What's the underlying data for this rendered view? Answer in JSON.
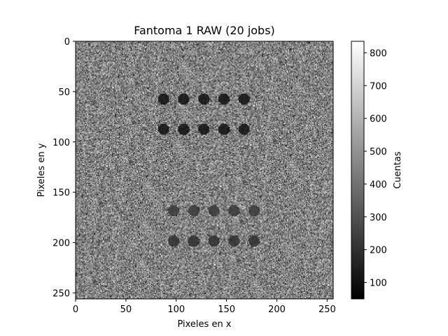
{
  "chart_data": {
    "type": "heatmap",
    "title": "Fantoma 1 RAW (20 jobs)",
    "xlabel": "Pixeles en x",
    "ylabel": "Pixeles en y",
    "xlim": [
      0,
      256
    ],
    "ylim": [
      256,
      0
    ],
    "x_ticks": [
      0,
      50,
      100,
      150,
      200,
      250
    ],
    "y_ticks": [
      0,
      50,
      100,
      150,
      200,
      250
    ],
    "colormap": "gray",
    "colorbar": {
      "label": "Cuentas",
      "range": [
        50,
        835
      ],
      "ticks": [
        100,
        200,
        300,
        400,
        500,
        600,
        700,
        800
      ]
    },
    "background": {
      "mean_counts": 450,
      "noise_std": 110
    },
    "spots": [
      {
        "x": 87,
        "y": 57,
        "radius": 5.5,
        "counts": 150
      },
      {
        "x": 107,
        "y": 57,
        "radius": 5.5,
        "counts": 150
      },
      {
        "x": 127,
        "y": 57,
        "radius": 5.5,
        "counts": 150
      },
      {
        "x": 147,
        "y": 57,
        "radius": 5.5,
        "counts": 150
      },
      {
        "x": 167,
        "y": 57,
        "radius": 5.5,
        "counts": 150
      },
      {
        "x": 87,
        "y": 87,
        "radius": 5.5,
        "counts": 150
      },
      {
        "x": 107,
        "y": 87,
        "radius": 5.5,
        "counts": 150
      },
      {
        "x": 127,
        "y": 87,
        "radius": 5.5,
        "counts": 150
      },
      {
        "x": 147,
        "y": 87,
        "radius": 5.5,
        "counts": 150
      },
      {
        "x": 167,
        "y": 87,
        "radius": 5.5,
        "counts": 150
      },
      {
        "x": 97,
        "y": 168,
        "radius": 5.5,
        "counts": 260
      },
      {
        "x": 117,
        "y": 168,
        "radius": 5.5,
        "counts": 260
      },
      {
        "x": 137,
        "y": 168,
        "radius": 5.5,
        "counts": 260
      },
      {
        "x": 157,
        "y": 168,
        "radius": 5.5,
        "counts": 260
      },
      {
        "x": 177,
        "y": 168,
        "radius": 5.5,
        "counts": 260
      },
      {
        "x": 97,
        "y": 198,
        "radius": 5.5,
        "counts": 230
      },
      {
        "x": 117,
        "y": 198,
        "radius": 5.5,
        "counts": 230
      },
      {
        "x": 137,
        "y": 198,
        "radius": 5.5,
        "counts": 230
      },
      {
        "x": 157,
        "y": 198,
        "radius": 5.5,
        "counts": 230
      },
      {
        "x": 177,
        "y": 198,
        "radius": 5.5,
        "counts": 230
      }
    ]
  }
}
